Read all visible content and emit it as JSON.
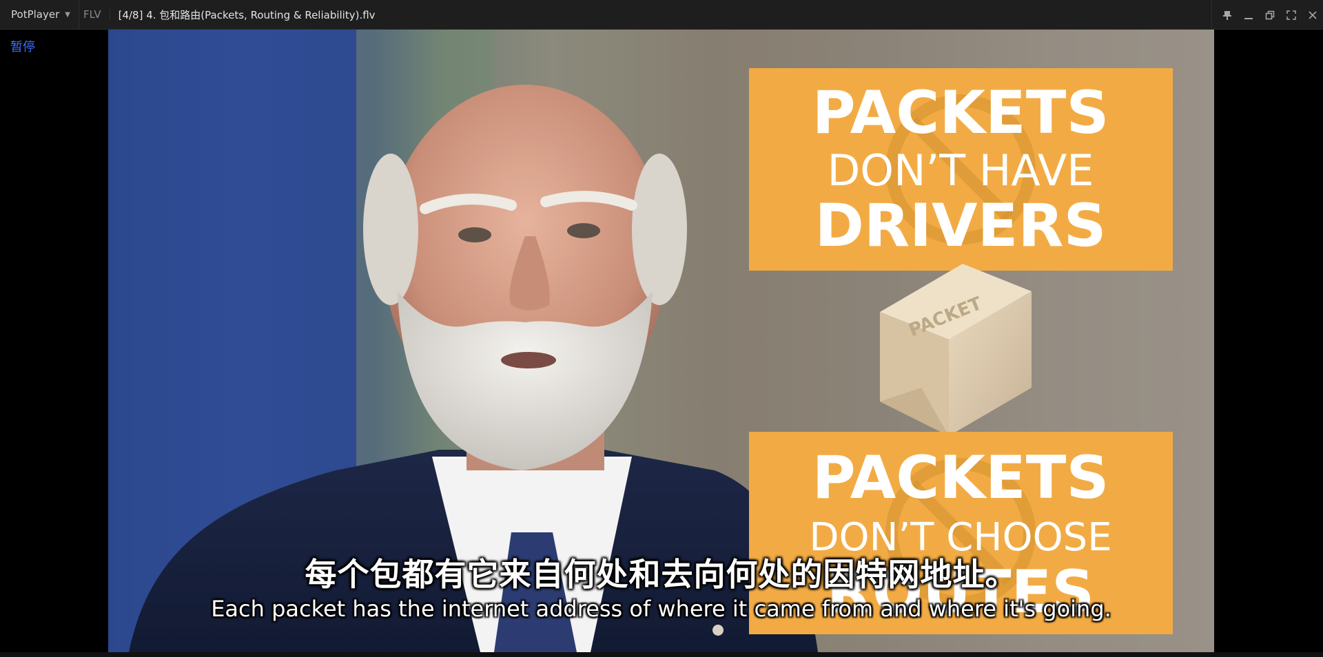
{
  "titlebar": {
    "app_name": "PotPlayer",
    "format": "FLV",
    "file_title": "[4/8] 4. 包和路由(Packets, Routing & Reliability).flv"
  },
  "window_controls": {
    "pin_icon": "pin-icon",
    "minimize_icon": "minimize-icon",
    "restore_icon": "restore-icon",
    "fullscreen_icon": "fullscreen-icon",
    "close_icon": "close-icon"
  },
  "osd": {
    "status": "暂停"
  },
  "video": {
    "card_top": {
      "line1": "PACKETS",
      "line2": "DON’T HAVE",
      "line3": "DRIVERS"
    },
    "box_label": "PACKET",
    "card_bottom": {
      "line1": "PACKETS",
      "line2": "DON’T CHOOSE",
      "line3": "ROUTES"
    },
    "card_color": "#f2ab44"
  },
  "subtitles": {
    "zh": "每个包都有它来自何处和去向何处的因特网地址。",
    "en": "Each packet has the internet address of where it came from and where it's going."
  }
}
